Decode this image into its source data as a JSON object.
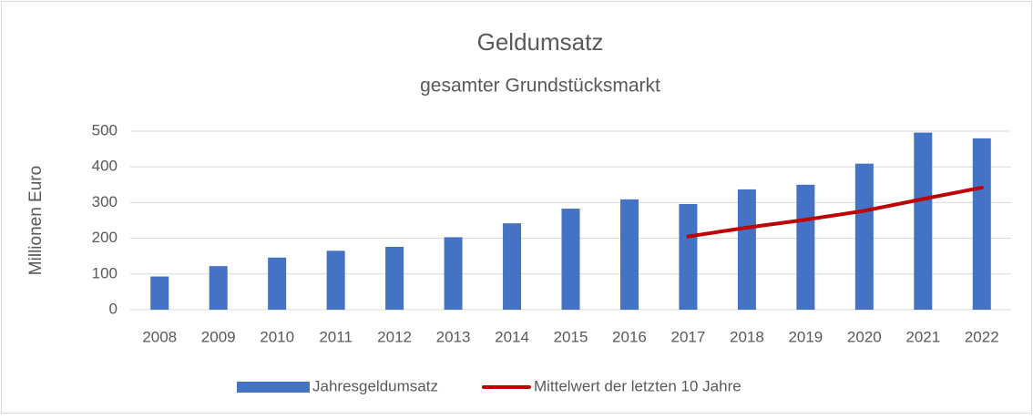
{
  "chart_data": {
    "type": "bar",
    "title": "Geldumsatz",
    "subtitle": "gesamter Grundstücksmarkt",
    "y_label": "Millionen Euro",
    "categories": [
      "2008",
      "2009",
      "2010",
      "2011",
      "2012",
      "2013",
      "2014",
      "2015",
      "2016",
      "2017",
      "2018",
      "2019",
      "2020",
      "2021",
      "2022"
    ],
    "series": [
      {
        "name": "Jahresgeldumsatz",
        "type": "bar",
        "color": "#4472c4",
        "values": [
          93,
          122,
          146,
          165,
          176,
          203,
          242,
          283,
          309,
          296,
          337,
          350,
          409,
          496,
          480
        ]
      },
      {
        "name": "Mittelwert der letzten 10 Jahre",
        "type": "line",
        "color": "#c00000",
        "values": [
          null,
          null,
          null,
          null,
          null,
          null,
          null,
          null,
          null,
          205,
          230,
          252,
          277,
          310,
          342
        ]
      }
    ],
    "ylim": [
      0,
      500
    ],
    "yticks": [
      0,
      100,
      200,
      300,
      400,
      500
    ],
    "grid": true,
    "legend": "bottom"
  }
}
